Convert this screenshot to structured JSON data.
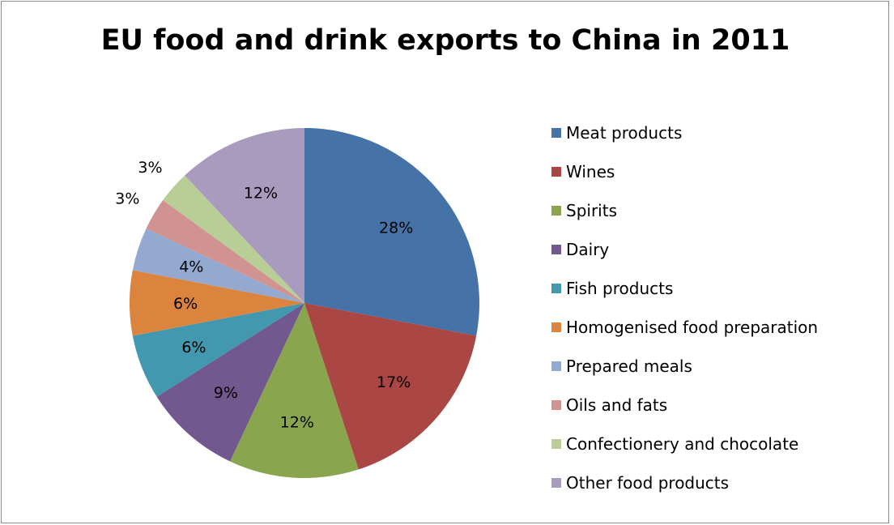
{
  "chart_data": {
    "type": "pie",
    "title": "EU food and drink exports to China in 2011",
    "slices": [
      {
        "name": "Meat products",
        "value": 28,
        "label": "28%",
        "color": "#4572A7"
      },
      {
        "name": "Wines",
        "value": 17,
        "label": "17%",
        "color": "#AA4643"
      },
      {
        "name": "Spirits",
        "value": 12,
        "label": "12%",
        "color": "#89A54E"
      },
      {
        "name": "Dairy",
        "value": 9,
        "label": "9%",
        "color": "#71588F"
      },
      {
        "name": "Fish products",
        "value": 6,
        "label": "6%",
        "color": "#4198AF"
      },
      {
        "name": "Homogenised food preparation",
        "value": 6,
        "label": "6%",
        "color": "#DB843D"
      },
      {
        "name": "Prepared meals",
        "value": 4,
        "label": "4%",
        "color": "#93A9CF"
      },
      {
        "name": "Oils and fats",
        "value": 3,
        "label": "3%",
        "color": "#D19392"
      },
      {
        "name": "Confectionery and chocolate",
        "value": 3,
        "label": "3%",
        "color": "#B9CD96"
      },
      {
        "name": "Other food products",
        "value": 12,
        "label": "12%",
        "color": "#A99BBD"
      }
    ],
    "legend_position": "right"
  }
}
